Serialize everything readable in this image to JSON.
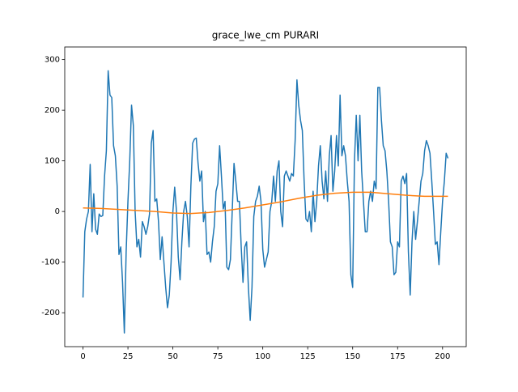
{
  "chart_data": {
    "type": "line",
    "title": "grace_lwe_cm PURARI",
    "xlim": [
      -10.15,
      213.15
    ],
    "xticks": [
      0,
      25,
      50,
      75,
      100,
      125,
      150,
      175,
      200
    ],
    "ylim": [
      -267,
      325
    ],
    "yticks": [
      -200,
      -100,
      0,
      100,
      200,
      300
    ],
    "series": [
      {
        "color": "#1f77b4",
        "x": [
          0,
          1,
          2,
          3,
          4,
          5,
          6,
          7,
          8,
          9,
          10,
          11,
          12,
          13,
          14,
          15,
          16,
          17,
          18,
          19,
          20,
          21,
          22,
          23,
          24,
          25,
          26,
          27,
          28,
          29,
          30,
          31,
          32,
          33,
          34,
          35,
          36,
          37,
          38,
          39,
          40,
          41,
          42,
          43,
          44,
          45,
          46,
          47,
          48,
          49,
          50,
          51,
          52,
          53,
          54,
          55,
          56,
          57,
          58,
          59,
          60,
          61,
          62,
          63,
          64,
          65,
          66,
          67,
          68,
          69,
          70,
          71,
          72,
          73,
          74,
          75,
          76,
          77,
          78,
          79,
          80,
          81,
          82,
          83,
          84,
          85,
          86,
          87,
          88,
          89,
          90,
          91,
          92,
          93,
          94,
          95,
          96,
          97,
          98,
          99,
          100,
          101,
          102,
          103,
          104,
          105,
          106,
          107,
          108,
          109,
          110,
          111,
          112,
          113,
          114,
          115,
          116,
          117,
          118,
          119,
          120,
          121,
          122,
          123,
          124,
          125,
          126,
          127,
          128,
          129,
          130,
          131,
          132,
          133,
          134,
          135,
          136,
          137,
          138,
          139,
          140,
          141,
          142,
          143,
          144,
          145,
          146,
          147,
          148,
          149,
          150,
          151,
          152,
          153,
          154,
          155,
          156,
          157,
          158,
          159,
          160,
          161,
          162,
          163,
          164,
          165,
          166,
          167,
          168,
          169,
          170,
          171,
          172,
          173,
          174,
          175,
          176,
          177,
          178,
          179,
          180,
          181,
          182,
          183,
          184,
          185,
          186,
          187,
          188,
          189,
          190,
          191,
          192,
          193,
          194,
          195,
          196,
          197,
          198,
          199,
          200,
          201,
          202,
          203
        ],
        "values": [
          -170,
          -40,
          -15,
          0,
          93,
          -40,
          35,
          -35,
          -45,
          -5,
          -10,
          -8,
          70,
          120,
          278,
          230,
          225,
          130,
          110,
          50,
          -85,
          -70,
          -140,
          -240,
          -80,
          20,
          100,
          210,
          170,
          0,
          -70,
          -55,
          -90,
          -20,
          -30,
          -45,
          -30,
          -5,
          135,
          160,
          20,
          25,
          -20,
          -95,
          -50,
          -100,
          -150,
          -190,
          -165,
          -100,
          0,
          48,
          0,
          -90,
          -135,
          -60,
          0,
          20,
          -10,
          -70,
          50,
          135,
          143,
          145,
          95,
          60,
          80,
          -20,
          0,
          -85,
          -80,
          -100,
          -60,
          -30,
          40,
          55,
          130,
          70,
          5,
          20,
          -110,
          -115,
          -95,
          0,
          95,
          60,
          20,
          20,
          -70,
          -140,
          -70,
          -60,
          -150,
          -215,
          -150,
          -10,
          20,
          30,
          50,
          20,
          -75,
          -110,
          -95,
          -80,
          0,
          20,
          70,
          20,
          80,
          100,
          0,
          -30,
          70,
          80,
          70,
          60,
          75,
          70,
          140,
          260,
          210,
          180,
          160,
          60,
          -15,
          -20,
          0,
          -40,
          40,
          -20,
          20,
          90,
          130,
          60,
          25,
          80,
          20,
          110,
          150,
          40,
          80,
          150,
          90,
          230,
          110,
          130,
          110,
          60,
          20,
          -125,
          -150,
          100,
          190,
          100,
          190,
          80,
          20,
          -40,
          -40,
          20,
          40,
          20,
          60,
          45,
          245,
          245,
          180,
          130,
          120,
          80,
          20,
          -60,
          -70,
          -125,
          -120,
          -60,
          -70,
          60,
          70,
          55,
          75,
          -80,
          -165,
          -60,
          0,
          -55,
          -20,
          20,
          60,
          75,
          120,
          140,
          130,
          115,
          60,
          0,
          -65,
          -60,
          -105,
          -40,
          20,
          60,
          115,
          105
        ]
      },
      {
        "color": "#ff7f0e",
        "x": [
          0,
          10,
          20,
          30,
          40,
          50,
          60,
          70,
          80,
          90,
          100,
          110,
          120,
          130,
          140,
          150,
          160,
          170,
          180,
          190,
          200,
          203
        ],
        "values": [
          7,
          6,
          4,
          2,
          0,
          -3,
          -4,
          -2,
          2,
          7,
          13,
          19,
          26,
          32,
          36,
          38,
          38,
          35,
          32,
          30,
          30,
          30
        ]
      }
    ]
  }
}
